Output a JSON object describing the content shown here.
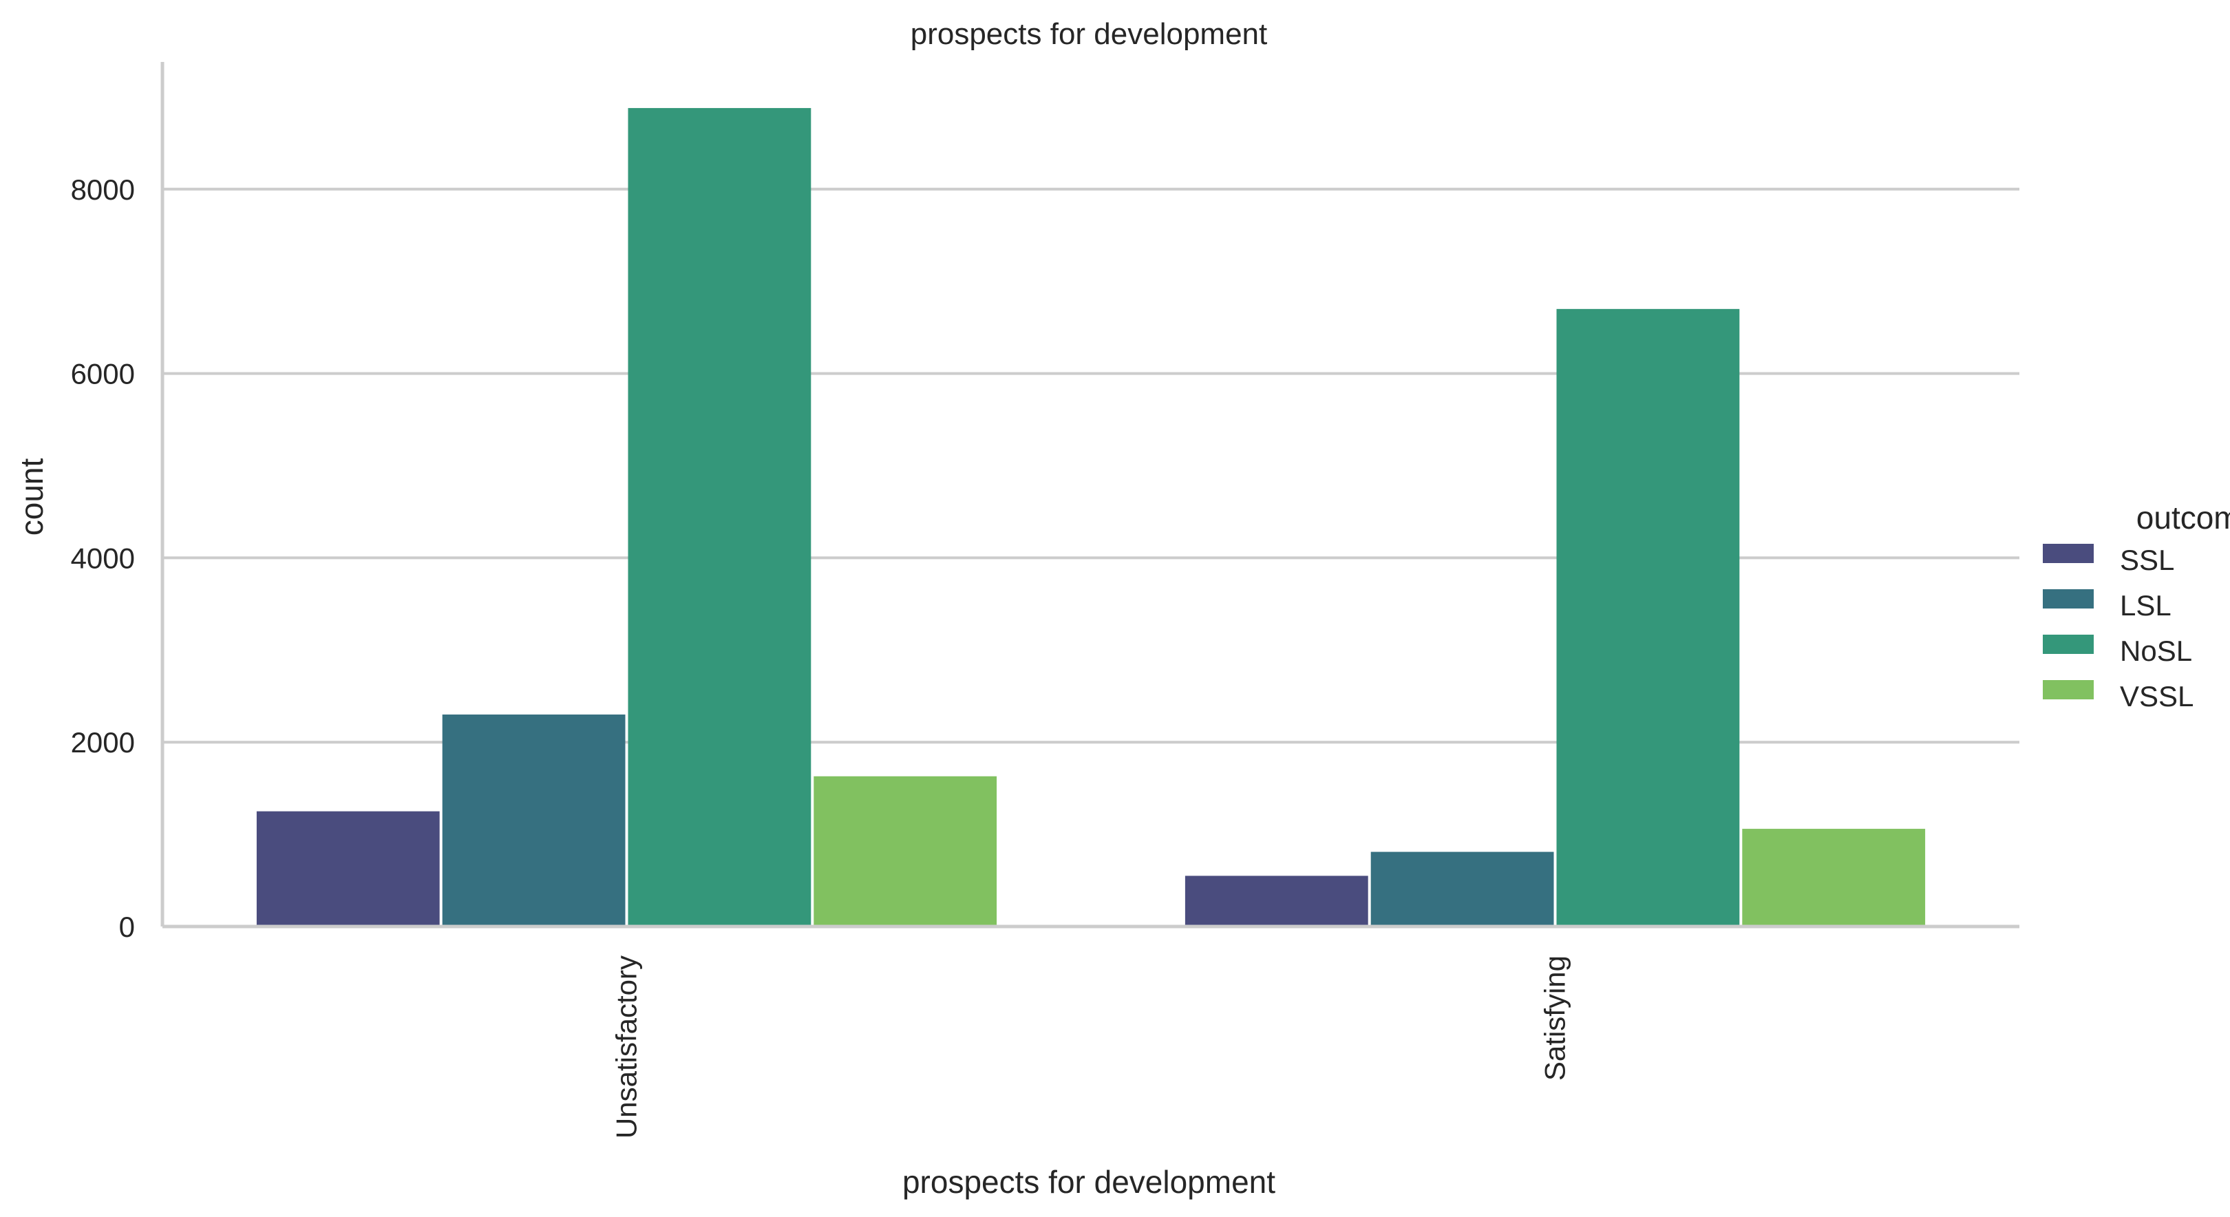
{
  "chart_data": {
    "type": "bar",
    "title": "prospects for development",
    "xlabel": "prospects for development",
    "ylabel": "count",
    "categories": [
      "Unsatisfactory",
      "Satisfying"
    ],
    "series": [
      {
        "name": "SSL",
        "color": "#4a4c7e",
        "values": [
          1250,
          550
        ]
      },
      {
        "name": "LSL",
        "color": "#367080",
        "values": [
          2300,
          810
        ]
      },
      {
        "name": "NoSL",
        "color": "#34977a",
        "values": [
          8880,
          6700
        ]
      },
      {
        "name": "VSSL",
        "color": "#81c160",
        "values": [
          1630,
          1060
        ]
      }
    ],
    "ylim": [
      0,
      9380
    ],
    "yticks": [
      0,
      2000,
      4000,
      6000,
      8000
    ],
    "grid": "horizontal",
    "legend": {
      "title": "outcome",
      "position": "right"
    }
  }
}
